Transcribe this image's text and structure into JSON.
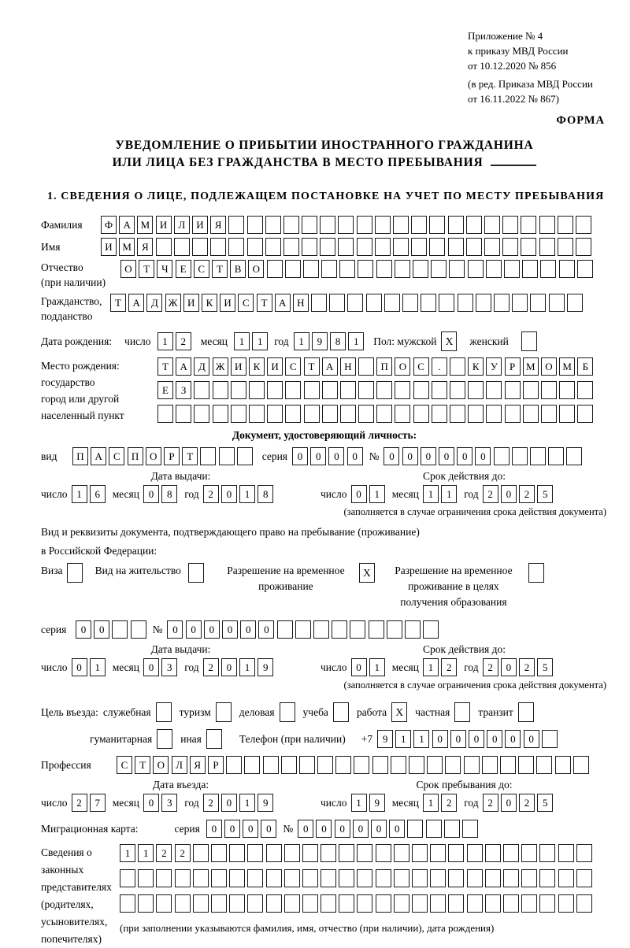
{
  "header": {
    "appendix1": "Приложение № 4",
    "appendix2": "к приказу МВД России",
    "appendix3": "от 10.12.2020 № 856",
    "revision1": "(в ред. Приказа МВД России",
    "revision2": "от 16.11.2022 № 867)",
    "form_word": "ФОРМА"
  },
  "title": {
    "line1": "УВЕДОМЛЕНИЕ О ПРИБЫТИИ ИНОСТРАННОГО ГРАЖДАНИНА",
    "line2": "ИЛИ ЛИЦА БЕЗ ГРАЖДАНСТВА В МЕСТО ПРЕБЫВАНИЯ"
  },
  "section1": {
    "heading": "1. СВЕДЕНИЯ О ЛИЦЕ, ПОДЛЕЖАЩЕМ ПОСТАНОВКЕ НА УЧЕТ ПО МЕСТУ ПРЕБЫВАНИЯ"
  },
  "labels": {
    "day": "число",
    "month": "месяц",
    "year": "год",
    "series": "серия",
    "number": "№"
  },
  "person": {
    "surname_label": "Фамилия",
    "surname": {
      "v": "ФАМИЛИЯ",
      "n": 27
    },
    "name_label": "Имя",
    "name": {
      "v": "ИМЯ",
      "n": 27
    },
    "patronymic_label": "Отчество",
    "patronymic_sub": "(при наличии)",
    "patronymic": {
      "v": "ОТЧЕСТВО",
      "n": 26
    },
    "citizenship_label": "Гражданство,",
    "citizenship_sub": "подданство",
    "citizenship": {
      "v": "ТАДЖИКИСТАН",
      "n": 26
    },
    "birthdate_label": "Дата рождения:",
    "birth_day": {
      "v": "12",
      "n": 2
    },
    "birth_month": {
      "v": "11",
      "n": 2
    },
    "birth_year": {
      "v": "1981",
      "n": 4
    },
    "gender_label": "Пол: мужской",
    "male_mark": "X",
    "female_label": "женский",
    "female_mark": "",
    "birthplace_label1": "Место рождения:",
    "birthplace_label2": "государство",
    "birthplace_label3": "город или другой",
    "birthplace_label4": "населенный пункт",
    "birthplace_row1": {
      "v": "ТАДЖИКИСТАН ПОС. КУРМОМБ",
      "n": 24
    },
    "birthplace_row2": {
      "v": "ЕЗ",
      "n": 24
    },
    "birthplace_row3": {
      "v": "",
      "n": 24
    }
  },
  "identity_doc": {
    "heading": "Документ, удостоверяющий личность:",
    "kind_label": "вид",
    "kind": {
      "v": "ПАСПОРТ",
      "n": 10
    },
    "series": {
      "v": "0000",
      "n": 4
    },
    "number": {
      "v": "000000",
      "n": 11
    },
    "issue_label": "Дата выдачи:",
    "issue_day": {
      "v": "16",
      "n": 2
    },
    "issue_month": {
      "v": "08",
      "n": 2
    },
    "issue_year": {
      "v": "2018",
      "n": 4
    },
    "valid_label": "Срок действия до:",
    "valid_day": {
      "v": "01",
      "n": 2
    },
    "valid_month": {
      "v": "11",
      "n": 2
    },
    "valid_year": {
      "v": "2025",
      "n": 4
    },
    "note": "(заполняется в случае ограничения срока действия документа)"
  },
  "stay_doc": {
    "intro1": "Вид и реквизиты документа, подтверждающего право на пребывание (проживание)",
    "intro2": "в Российской Федерации:",
    "visa_label": "Виза",
    "visa_mark": "",
    "residence_label": "Вид на жительство",
    "residence_mark": "",
    "temp_line1": "Разрешение на временное",
    "temp_line2": "проживание",
    "temp_mark": "X",
    "edu_line1": "Разрешение на временное",
    "edu_line2": "проживание в целях",
    "edu_line3": "получения образования",
    "edu_mark": "",
    "series": {
      "v": "00",
      "n": 4
    },
    "number": {
      "v": "000000",
      "n": 15
    },
    "issue_label": "Дата выдачи:",
    "issue_day": {
      "v": "01",
      "n": 2
    },
    "issue_month": {
      "v": "03",
      "n": 2
    },
    "issue_year": {
      "v": "2019",
      "n": 4
    },
    "valid_label": "Срок действия до:",
    "valid_day": {
      "v": "01",
      "n": 2
    },
    "valid_month": {
      "v": "12",
      "n": 2
    },
    "valid_year": {
      "v": "2025",
      "n": 4
    },
    "note": "(заполняется в случае ограничения срока действия документа)"
  },
  "visit": {
    "purpose_label": "Цель въезда:",
    "purposes": [
      {
        "label": "служебная",
        "mark": ""
      },
      {
        "label": "туризм",
        "mark": ""
      },
      {
        "label": "деловая",
        "mark": ""
      },
      {
        "label": "учеба",
        "mark": ""
      },
      {
        "label": "работа",
        "mark": "X"
      },
      {
        "label": "частная",
        "mark": ""
      },
      {
        "label": "транзит",
        "mark": ""
      }
    ],
    "humanitarian_label": "гуманитарная",
    "humanitarian_mark": "",
    "other_label": "иная",
    "other_mark": "",
    "phone_label": "Телефон (при наличии)",
    "phone_prefix": "+7",
    "phone": {
      "v": "911000000",
      "n": 10
    },
    "profession_label": "Профессия",
    "profession": {
      "v": "СТОЛЯР",
      "n": 26
    },
    "entry_label": "Дата въезда:",
    "entry_day": {
      "v": "27",
      "n": 2
    },
    "entry_month": {
      "v": "03",
      "n": 2
    },
    "entry_year": {
      "v": "2019",
      "n": 4
    },
    "stay_label": "Срок пребывания до:",
    "stay_day": {
      "v": "19",
      "n": 2
    },
    "stay_month": {
      "v": "12",
      "n": 2
    },
    "stay_year": {
      "v": "2025",
      "n": 4
    },
    "migration_label": "Миграционная карта:",
    "mig_series": {
      "v": "0000",
      "n": 4
    },
    "mig_number": {
      "v": "000000",
      "n": 10
    }
  },
  "representatives": {
    "label1": "Сведения о",
    "label2": "законных",
    "label3": "представителях",
    "label4": "(родителях,",
    "label5": "усыновителях,",
    "label6": "попечителях)",
    "row1": {
      "v": "1122",
      "n": 26
    },
    "row2": {
      "v": "",
      "n": 26
    },
    "row3": {
      "v": "",
      "n": 26
    },
    "note": "(при заполнении указываются фамилия, имя, отчество (при наличии), дата рождения)"
  }
}
